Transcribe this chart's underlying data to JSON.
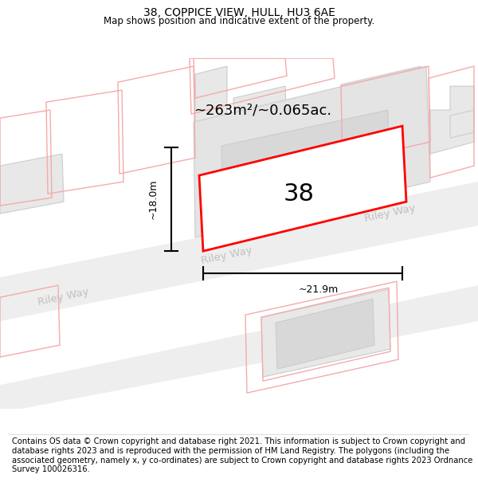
{
  "title": "38, COPPICE VIEW, HULL, HU3 6AE",
  "subtitle": "Map shows position and indicative extent of the property.",
  "footer": "Contains OS data © Crown copyright and database right 2021. This information is subject to Crown copyright and database rights 2023 and is reproduced with the permission of HM Land Registry. The polygons (including the associated geometry, namely x, y co-ordinates) are subject to Crown copyright and database rights 2023 Ordnance Survey 100026316.",
  "background_color": "#ffffff",
  "map_bg": "#ffffff",
  "building_fill": "#e8e8e8",
  "building_stroke": "#cccccc",
  "pink_stroke": "#f5aaaa",
  "highlight_stroke": "#ff0000",
  "street_label_color": "#c0c0c0",
  "area_label": "~263m²/~0.065ac.",
  "dim_h": "~18.0m",
  "dim_w": "~21.9m",
  "number_label": "38",
  "street_name": "Riley Way",
  "title_fontsize": 10,
  "subtitle_fontsize": 8.5,
  "footer_fontsize": 7.2
}
